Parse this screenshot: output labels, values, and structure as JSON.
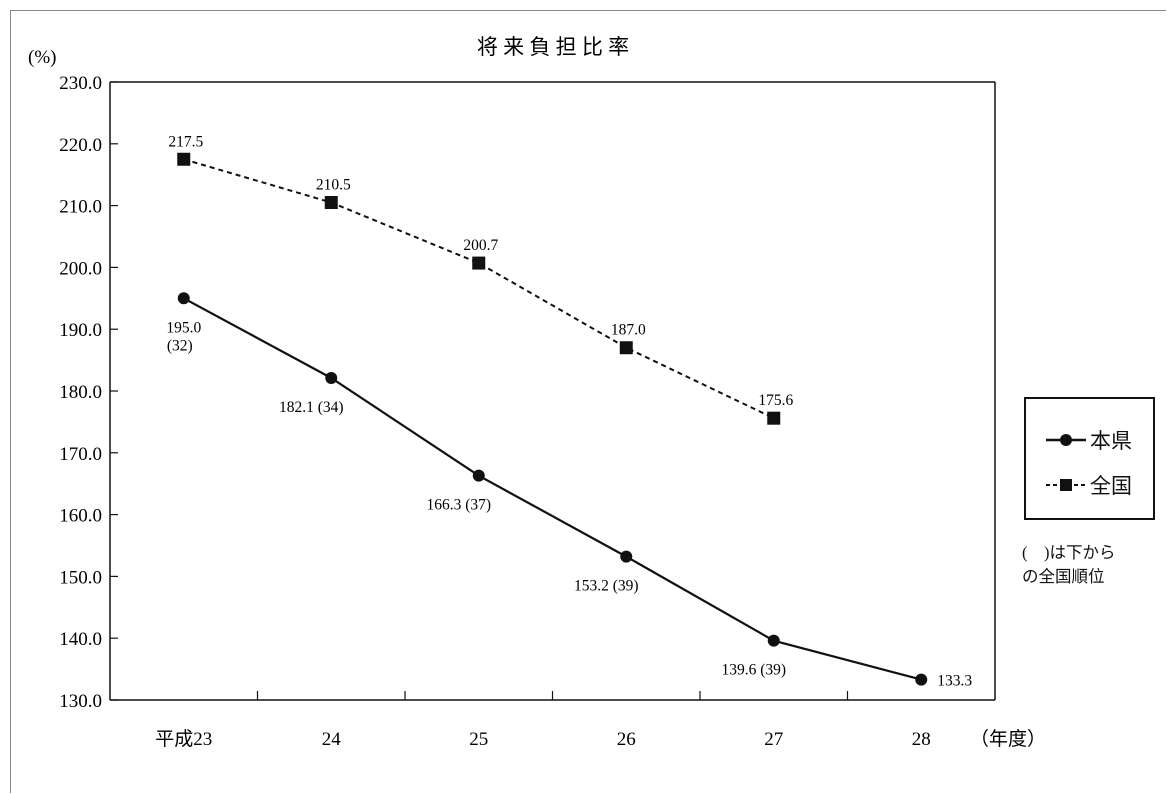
{
  "chart_data": {
    "type": "line",
    "title": "将 来 負 担 比 率",
    "ylabel": "(%)",
    "xlabel": "（年度）",
    "ylim": [
      130.0,
      230.0
    ],
    "y_ticks": [
      "130.0",
      "140.0",
      "150.0",
      "160.0",
      "170.0",
      "180.0",
      "190.0",
      "200.0",
      "210.0",
      "220.0",
      "230.0"
    ],
    "categories": [
      "平成23",
      "24",
      "25",
      "26",
      "27",
      "28"
    ],
    "series": [
      {
        "name": "本県",
        "style": "solid",
        "marker": "circle",
        "values": [
          195.0,
          182.1,
          166.3,
          153.2,
          139.6,
          133.3
        ],
        "labels": [
          "195.0",
          "182.1 (34)",
          "166.3 (37)",
          "153.2 (39)",
          "139.6 (39)",
          "133.3"
        ],
        "label_extra": [
          "(32)",
          "",
          "",
          "",
          "",
          ""
        ]
      },
      {
        "name": "全国",
        "style": "dashed",
        "marker": "square",
        "values": [
          217.5,
          210.5,
          200.7,
          187.0,
          175.6,
          null
        ],
        "labels": [
          "217.5",
          "210.5",
          "200.7",
          "187.0",
          "175.6",
          ""
        ]
      }
    ],
    "legend": {
      "position": "right"
    },
    "note": "(　)は下から\nの全国順位",
    "colors": {
      "line": "#111111",
      "background": "#ffffff"
    }
  }
}
